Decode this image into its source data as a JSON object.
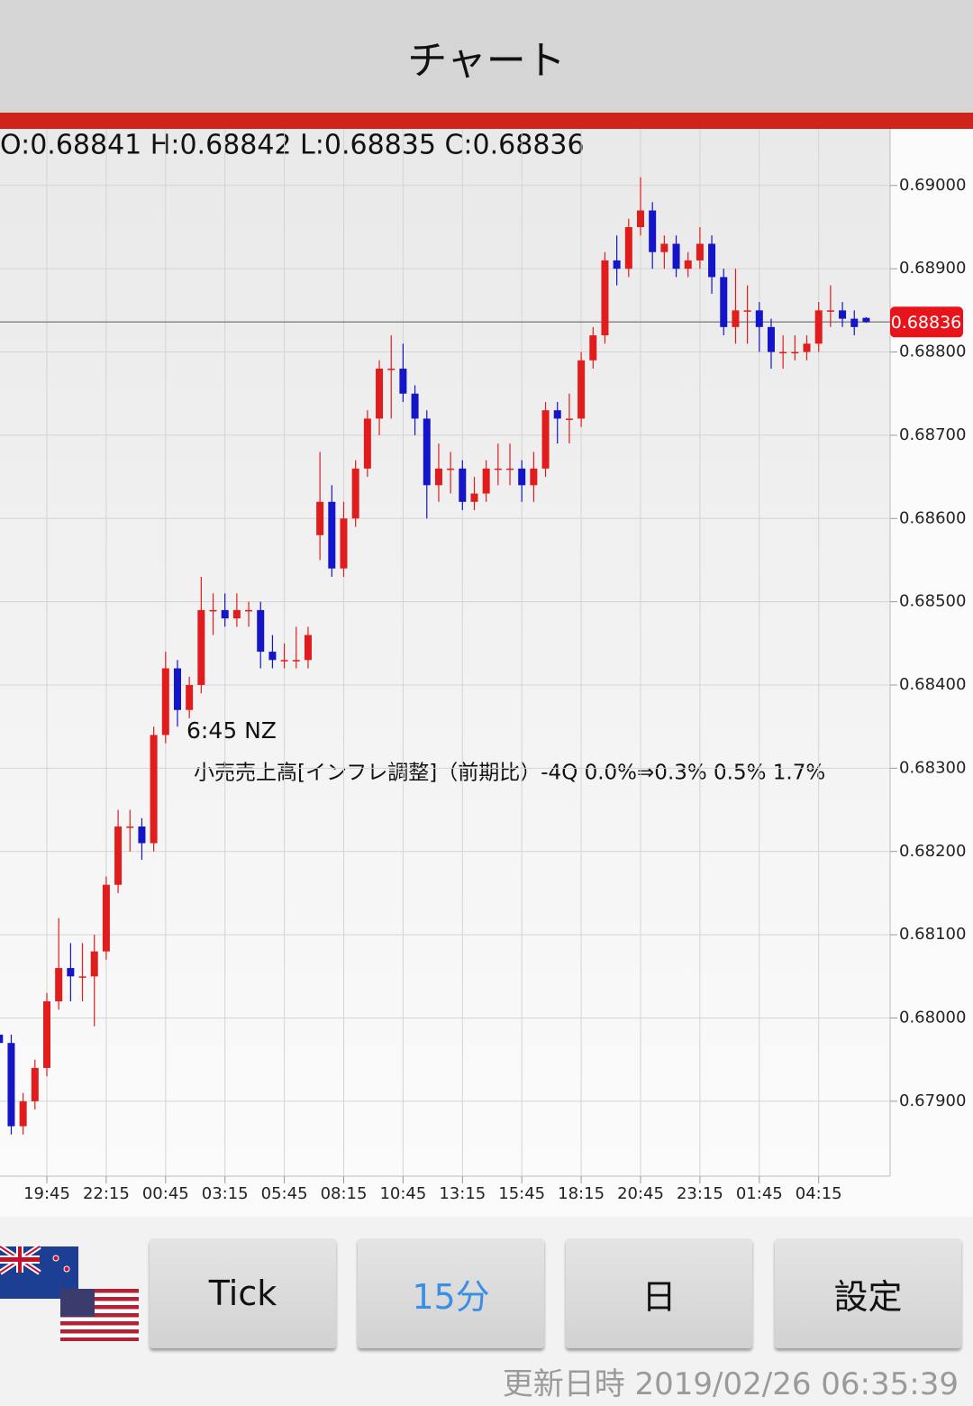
{
  "header": {
    "title": "チャート"
  },
  "chart_data": {
    "type": "candlestick",
    "info": "O:0.68841 H:0.68842 L:0.68835 C:0.68836",
    "up_color": "#e01c1c",
    "down_color": "#1414c8",
    "x": [
      null,
      null,
      null,
      null,
      "19:45",
      null,
      null,
      null,
      null,
      "22:15",
      null,
      null,
      null,
      null,
      "00:45",
      null,
      null,
      null,
      null,
      "03:15",
      null,
      null,
      null,
      null,
      "05:45",
      null,
      null,
      null,
      null,
      "08:15",
      null,
      null,
      null,
      null,
      "10:45",
      null,
      null,
      null,
      null,
      "13:15",
      null,
      null,
      null,
      null,
      "15:45",
      null,
      null,
      null,
      null,
      "18:15",
      null,
      null,
      null,
      null,
      "20:45",
      null,
      null,
      null,
      null,
      "23:15",
      null,
      null,
      null,
      null,
      "01:45",
      null,
      null,
      null,
      null,
      "04:15",
      null,
      null,
      null,
      null
    ],
    "open": [
      0.6798,
      0.6797,
      0.6787,
      0.679,
      0.6794,
      0.6802,
      0.6806,
      0.6805,
      0.6805,
      0.6808,
      0.6816,
      0.6823,
      0.6823,
      0.6821,
      0.6834,
      0.6842,
      0.6837,
      0.684,
      0.6849,
      0.6849,
      0.6848,
      0.6849,
      0.6849,
      0.6844,
      0.6843,
      0.6843,
      0.6843,
      0.6858,
      0.6862,
      0.6854,
      0.686,
      0.6866,
      0.6872,
      0.6878,
      0.6878,
      0.6875,
      0.6872,
      0.6864,
      0.6866,
      0.6866,
      0.6862,
      0.6863,
      0.6866,
      0.6866,
      0.6866,
      0.6864,
      0.6866,
      0.6873,
      0.6872,
      0.6872,
      0.6879,
      0.6882,
      0.6891,
      0.689,
      0.6895,
      0.6897,
      0.6892,
      0.6893,
      0.689,
      0.6891,
      0.6893,
      0.6889,
      0.6883,
      0.6885,
      0.6885,
      0.6883,
      0.688,
      0.688,
      0.688,
      0.6881,
      0.6885,
      0.6885,
      0.6884,
      0.68841
    ],
    "high": [
      0.6799,
      0.6798,
      0.6791,
      0.6795,
      0.6803,
      0.6812,
      0.6809,
      0.6809,
      0.681,
      0.6817,
      0.6825,
      0.6825,
      0.6824,
      0.6835,
      0.6844,
      0.6843,
      0.6841,
      0.6853,
      0.6851,
      0.6851,
      0.6851,
      0.685,
      0.685,
      0.6846,
      0.6845,
      0.6847,
      0.6847,
      0.6868,
      0.6864,
      0.6862,
      0.6867,
      0.6873,
      0.6879,
      0.6882,
      0.6881,
      0.6876,
      0.6873,
      0.6869,
      0.6868,
      0.6867,
      0.6865,
      0.6867,
      0.6869,
      0.6869,
      0.6867,
      0.6868,
      0.6874,
      0.6874,
      0.6875,
      0.688,
      0.6883,
      0.6892,
      0.6894,
      0.6896,
      0.6901,
      0.6898,
      0.6894,
      0.6894,
      0.6892,
      0.6895,
      0.6894,
      0.689,
      0.689,
      0.6888,
      0.6886,
      0.6884,
      0.6882,
      0.6882,
      0.6882,
      0.6886,
      0.6888,
      0.6886,
      0.6885,
      0.68842
    ],
    "low": [
      0.6796,
      0.6786,
      0.6786,
      0.6789,
      0.6793,
      0.6801,
      0.6802,
      0.6802,
      0.6799,
      0.6807,
      0.6815,
      0.682,
      0.6819,
      0.682,
      0.6833,
      0.6835,
      0.6836,
      0.6839,
      0.6846,
      0.6847,
      0.6847,
      0.6847,
      0.6842,
      0.6842,
      0.6842,
      0.6842,
      0.6842,
      0.6855,
      0.6853,
      0.6853,
      0.6859,
      0.6865,
      0.687,
      0.6872,
      0.6874,
      0.687,
      0.686,
      0.6862,
      0.6863,
      0.6861,
      0.6861,
      0.6862,
      0.6864,
      0.6864,
      0.6862,
      0.6862,
      0.6865,
      0.6869,
      0.6869,
      0.6871,
      0.6878,
      0.6881,
      0.6888,
      0.6889,
      0.6894,
      0.689,
      0.689,
      0.6889,
      0.6889,
      0.689,
      0.6887,
      0.6882,
      0.6881,
      0.6881,
      0.688,
      0.6878,
      0.6878,
      0.6879,
      0.6879,
      0.688,
      0.6883,
      0.6883,
      0.6882,
      0.68835
    ],
    "close": [
      0.6797,
      0.6787,
      0.679,
      0.6794,
      0.6802,
      0.6806,
      0.6805,
      0.6805,
      0.6808,
      0.6816,
      0.6823,
      0.6823,
      0.6821,
      0.6834,
      0.6842,
      0.6837,
      0.684,
      0.6849,
      0.6849,
      0.6848,
      0.6849,
      0.6849,
      0.6844,
      0.6843,
      0.6843,
      0.6843,
      0.6846,
      0.6862,
      0.6854,
      0.686,
      0.6866,
      0.6872,
      0.6878,
      0.6878,
      0.6875,
      0.6872,
      0.6864,
      0.6866,
      0.6866,
      0.6862,
      0.6863,
      0.6866,
      0.6866,
      0.6866,
      0.6864,
      0.6866,
      0.6873,
      0.6872,
      0.6872,
      0.6879,
      0.6882,
      0.6891,
      0.689,
      0.6895,
      0.6897,
      0.6892,
      0.6893,
      0.689,
      0.6891,
      0.6893,
      0.6889,
      0.6883,
      0.6885,
      0.6885,
      0.6883,
      0.688,
      0.688,
      0.688,
      0.6881,
      0.6885,
      0.6885,
      0.6884,
      0.6883,
      0.68836
    ],
    "ylim": [
      0.6781,
      0.69068
    ],
    "yticks": [
      {
        "value": 0.679,
        "label": "0.67900"
      },
      {
        "value": 0.68,
        "label": "0.68000"
      },
      {
        "value": 0.681,
        "label": "0.68100"
      },
      {
        "value": 0.682,
        "label": "0.68200"
      },
      {
        "value": 0.683,
        "label": "0.68300"
      },
      {
        "value": 0.684,
        "label": "0.68400"
      },
      {
        "value": 0.685,
        "label": "0.68500"
      },
      {
        "value": 0.686,
        "label": "0.68600"
      },
      {
        "value": 0.687,
        "label": "0.68700"
      },
      {
        "value": 0.688,
        "label": "0.68800"
      },
      {
        "value": 0.689,
        "label": "0.68900"
      },
      {
        "value": 0.69,
        "label": "0.69000"
      }
    ],
    "current_price": {
      "value": 0.68836,
      "label": "0.68836"
    },
    "grid": true,
    "annotations": [
      "6:45 NZ",
      "小売売上高[インフレ調整]（前期比）-4Q 0.0%⇒0.3% 0.5% 1.7%"
    ]
  },
  "buttons": [
    "Tick",
    "15分",
    "日",
    "設定"
  ],
  "footer": "更新日時 2019/02/26 06:35:39"
}
